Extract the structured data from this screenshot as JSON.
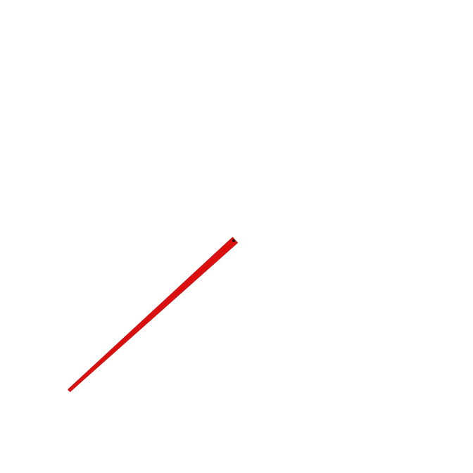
{
  "scene": {
    "background_color": "#ffffff",
    "stroke": {
      "color": "#e01010",
      "edge_color": "#b80d0d"
    },
    "endpoint_marker": {
      "color": "#2a0505"
    }
  }
}
